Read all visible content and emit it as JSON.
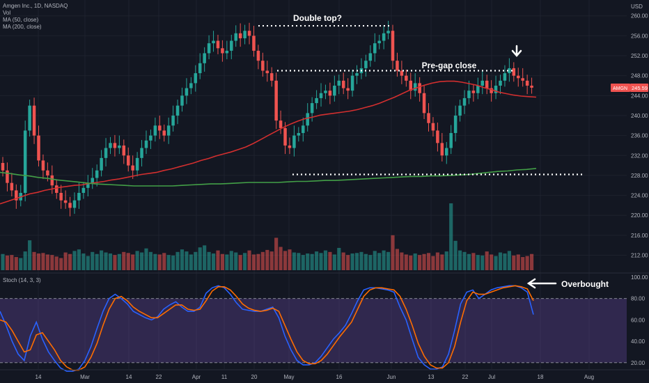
{
  "legend": {
    "title": "Amgen Inc., 1D, NASDAQ",
    "vol": "Vol",
    "ma50": "MA (50, close)",
    "ma200": "MA (200, close)",
    "stoch": "Stoch (14, 3, 3)"
  },
  "currency": "USD",
  "price_badge": {
    "ticker": "AMGN",
    "price": "245.59"
  },
  "annotations": {
    "double_top": "Double top?",
    "pregap": "Pre-gap close",
    "overbought": "Overbought"
  },
  "colors": {
    "background": "#131722",
    "up": "#26a69a",
    "down": "#ef5350",
    "ma50": "#d32f2f",
    "ma200": "#43a047",
    "stoch_k": "#2962ff",
    "stoch_d": "#ff6d00",
    "stoch_band": "#7e57c2"
  },
  "chart_data": [
    {
      "type": "candlestick",
      "title": "Amgen Inc., 1D, NASDAQ",
      "ylabel": "USD",
      "ylim": [
        209,
        261.5
      ],
      "y_ticks": [
        "212.00",
        "216.00",
        "220.00",
        "224.00",
        "228.00",
        "232.00",
        "236.00",
        "240.00",
        "244.00",
        "248.00",
        "252.00",
        "256.00",
        "260.00"
      ],
      "x_ticks": [
        "14",
        "Mar",
        "14",
        "22",
        "Apr",
        "11",
        "20",
        "May",
        "16",
        "Jun",
        "13",
        "22",
        "Jul",
        "18",
        "Aug"
      ],
      "levels": {
        "double_top": 258,
        "pregap": 249,
        "support": 228.2
      },
      "last_price": 245.59,
      "closes": [
        229.0,
        226.5,
        225.0,
        223.0,
        224.5,
        237.0,
        242.0,
        236.0,
        231.0,
        229.0,
        228.0,
        226.0,
        224.5,
        223.0,
        222.5,
        221.5,
        223.0,
        224.5,
        225.5,
        226.5,
        227.5,
        229.0,
        231.5,
        233.5,
        234.5,
        233.5,
        234.0,
        232.0,
        230.0,
        229.0,
        231.5,
        233.5,
        235.0,
        236.0,
        238.0,
        237.0,
        236.0,
        238.0,
        240.0,
        242.0,
        244.0,
        245.5,
        246.5,
        248.5,
        250.5,
        252.5,
        254.5,
        255.0,
        253.5,
        252.5,
        253.0,
        255.0,
        256.5,
        255.5,
        257.0,
        256.0,
        253.0,
        251.0,
        249.0,
        248.5,
        247.0,
        239.0,
        237.5,
        234.0,
        233.5,
        236.0,
        236.5,
        238.0,
        240.5,
        242.5,
        243.5,
        244.5,
        245.0,
        244.0,
        246.0,
        247.0,
        245.5,
        245.0,
        248.0,
        248.5,
        249.5,
        251.0,
        252.5,
        254.5,
        255.0,
        256.5,
        257.0,
        251.0,
        249.0,
        248.0,
        247.0,
        245.0,
        246.5,
        244.5,
        240.5,
        238.5,
        237.0,
        234.5,
        232.0,
        233.5,
        236.5,
        240.0,
        242.0,
        243.5,
        245.0,
        244.5,
        246.0,
        247.0,
        245.5,
        244.5,
        246.0,
        247.0,
        248.5,
        249.5,
        248.0,
        247.5,
        247.0,
        246.0,
        245.59
      ],
      "ma50": [
        222.3,
        222.8,
        223.3,
        223.8,
        224.3,
        224.6,
        225.0,
        225.3,
        225.6,
        225.8,
        226.0,
        226.1,
        226.4,
        226.6,
        226.8,
        227.1,
        227.3,
        227.6,
        227.9,
        228.2,
        228.4,
        228.6,
        229.0,
        229.3,
        229.7,
        230.1,
        230.5,
        231.0,
        231.4,
        231.9,
        232.3,
        232.7,
        233.2,
        233.7,
        234.4,
        235.2,
        236.0,
        236.8,
        237.6,
        238.3,
        238.9,
        239.4,
        239.7,
        240.1,
        240.3,
        240.5,
        240.7,
        240.9,
        241.2,
        241.6,
        242.0,
        242.5,
        243.1,
        243.7,
        244.4,
        245.1,
        245.6,
        246.1,
        246.5,
        246.8,
        246.9,
        246.9,
        246.7,
        246.4,
        246.1,
        245.6,
        245.2,
        244.7,
        244.4,
        244.1,
        243.9,
        243.8,
        243.7
      ],
      "ma200": [
        228.6,
        228.4,
        228.1,
        227.9,
        227.6,
        227.4,
        227.1,
        226.9,
        226.7,
        226.5,
        226.3,
        226.2,
        226.1,
        226.0,
        225.9,
        225.9,
        225.9,
        225.9,
        225.9,
        226.0,
        226.1,
        226.2,
        226.3,
        226.3,
        226.4,
        226.5,
        226.6,
        226.6,
        226.6,
        226.6,
        226.7,
        226.8,
        226.8,
        226.9,
        227.0,
        227.0,
        227.1,
        227.2,
        227.3,
        227.4,
        227.5,
        227.6,
        227.7,
        227.8,
        227.8,
        227.9,
        227.9,
        228.0,
        228.1,
        228.2,
        228.4,
        228.6,
        228.8,
        228.9,
        229.1,
        229.2,
        229.4
      ]
    },
    {
      "type": "bar",
      "title": "Vol",
      "values": [
        3.2,
        2.9,
        3.0,
        2.6,
        2.4,
        3.7,
        5.9,
        3.6,
        3.3,
        3.4,
        3.1,
        3.0,
        2.7,
        2.4,
        3.5,
        3.2,
        3.8,
        4.1,
        3.3,
        2.8,
        3.6,
        3.2,
        3.9,
        3.5,
        3.3,
        3.0,
        3.2,
        3.6,
        3.4,
        3.1,
        3.8,
        3.5,
        4.3,
        3.6,
        3.2,
        3.1,
        3.4,
        3.0,
        2.9,
        3.6,
        4.1,
        3.7,
        3.1,
        3.6,
        4.5,
        4.9,
        3.6,
        3.3,
        3.9,
        3.2,
        3.1,
        3.8,
        3.5,
        3.0,
        3.4,
        3.9,
        3.1,
        3.2,
        3.6,
        4.0,
        3.7,
        6.4,
        4.6,
        3.8,
        4.1,
        3.5,
        3.4,
        3.0,
        3.3,
        3.2,
        3.7,
        3.4,
        3.9,
        3.6,
        3.1,
        4.4,
        3.5,
        3.0,
        3.3,
        3.4,
        3.6,
        3.2,
        3.0,
        3.8,
        3.4,
        3.9,
        3.6,
        6.9,
        4.2,
        3.5,
        3.1,
        2.9,
        3.3,
        3.0,
        3.2,
        3.4,
        2.8,
        3.5,
        3.1,
        3.7,
        13.2,
        5.8,
        3.9,
        3.6,
        3.2,
        3.4,
        3.0,
        2.9,
        3.7,
        3.1,
        2.8,
        3.5,
        3.3,
        3.8,
        2.9,
        3.1,
        2.6,
        2.8,
        3.2
      ]
    },
    {
      "type": "line",
      "title": "Stoch (14, 3, 3)",
      "ylim": [
        14,
        100
      ],
      "y_ticks": [
        "20.00",
        "40.00",
        "60.00",
        "80.00",
        "100.00"
      ],
      "levels": [
        20,
        80
      ],
      "series": [
        {
          "name": "%K",
          "values": [
            68,
            55,
            40,
            28,
            22,
            45,
            58,
            42,
            30,
            22,
            15,
            12,
            12,
            14,
            22,
            35,
            52,
            68,
            80,
            84,
            80,
            75,
            68,
            65,
            62,
            60,
            63,
            70,
            74,
            77,
            72,
            68,
            68,
            72,
            85,
            90,
            92,
            90,
            84,
            76,
            70,
            69,
            68,
            68,
            70,
            72,
            62,
            45,
            32,
            22,
            18,
            18,
            20,
            26,
            34,
            42,
            48,
            55,
            66,
            78,
            88,
            90,
            90,
            89,
            88,
            86,
            72,
            60,
            42,
            25,
            18,
            14,
            14,
            16,
            28,
            50,
            75,
            86,
            88,
            80,
            84,
            88,
            90,
            91,
            92,
            92,
            90,
            86,
            65
          ]
        },
        {
          "name": "%D",
          "values": [
            60,
            58,
            50,
            40,
            30,
            32,
            46,
            48,
            40,
            32,
            22,
            16,
            13,
            13,
            16,
            25,
            38,
            55,
            70,
            80,
            82,
            78,
            72,
            68,
            65,
            62,
            62,
            66,
            70,
            74,
            74,
            70,
            69,
            70,
            78,
            87,
            91,
            91,
            88,
            82,
            75,
            71,
            69,
            68,
            69,
            71,
            68,
            55,
            42,
            30,
            22,
            19,
            19,
            22,
            28,
            36,
            44,
            51,
            58,
            70,
            82,
            88,
            90,
            90,
            89,
            88,
            82,
            70,
            55,
            38,
            26,
            18,
            15,
            15,
            20,
            35,
            58,
            78,
            86,
            84,
            84,
            86,
            88,
            90,
            91,
            92,
            91,
            89,
            78
          ]
        }
      ]
    }
  ]
}
